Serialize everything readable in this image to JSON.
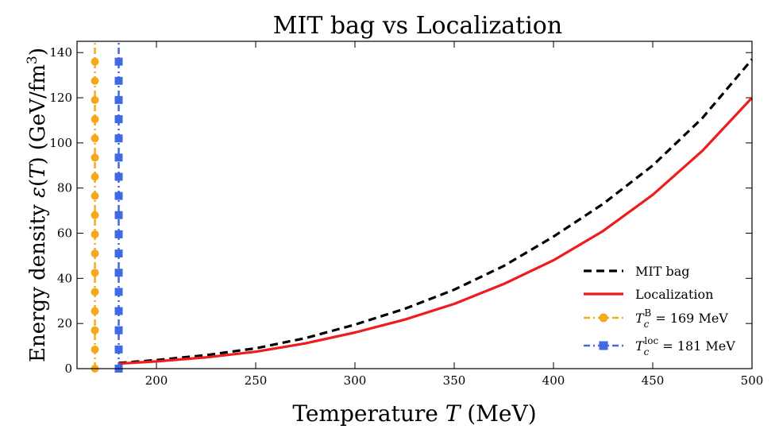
{
  "chart_data": {
    "type": "line",
    "title": "MIT bag vs Localization",
    "xlabel": {
      "prefix": "Temperature ",
      "var": "T",
      "suffix": " (MeV)"
    },
    "ylabel": {
      "prefix": "Energy density ",
      "eps": "ε",
      "open": "(",
      "var": "T",
      "close": ")",
      "units": " (GeV/fm",
      "exp": "3",
      "units_close": ")"
    },
    "xlim": [
      160,
      500
    ],
    "ylim": [
      0,
      145
    ],
    "xticks": [
      200,
      250,
      300,
      350,
      400,
      450,
      500
    ],
    "yticks": [
      0,
      20,
      40,
      60,
      80,
      100,
      120,
      140
    ],
    "series": [
      {
        "name": "MIT bag",
        "style": "dashed",
        "color": "#000000",
        "x": [
          181,
          200,
          225,
          250,
          275,
          300,
          325,
          350,
          375,
          400,
          425,
          450,
          475,
          500
        ],
        "y": [
          2.5,
          3.8,
          6.0,
          9.0,
          13.5,
          19.5,
          26.5,
          35.0,
          45.5,
          58.5,
          73.0,
          90.0,
          111.0,
          137.0
        ]
      },
      {
        "name": "Localization",
        "style": "solid",
        "color": "#ee1c1c",
        "x": [
          181,
          200,
          225,
          250,
          275,
          300,
          325,
          350,
          375,
          400,
          425,
          450,
          475,
          500
        ],
        "y": [
          2.2,
          3.2,
          5.0,
          7.5,
          11.2,
          16.0,
          21.7,
          28.7,
          37.5,
          48.0,
          61.0,
          77.0,
          96.5,
          120.0
        ]
      },
      {
        "name": "Tc B",
        "style": "dashdot-circle",
        "color": "#f5a81b",
        "x_value": 169,
        "marker_y": [
          0,
          8.5,
          17,
          25.5,
          34,
          42.5,
          51,
          59.5,
          68,
          76.5,
          85,
          93.5,
          102,
          110.5,
          119,
          127.5,
          136
        ],
        "label": {
          "T": "T",
          "sub": "c",
          "sup": "B",
          "rest": " = 169 MeV"
        }
      },
      {
        "name": "Tc loc",
        "style": "dashdot-square",
        "color": "#4169e1",
        "x_value": 181,
        "marker_y": [
          0,
          8.5,
          17,
          25.5,
          34,
          42.5,
          51,
          59.5,
          68,
          76.5,
          85,
          93.5,
          102,
          110.5,
          119,
          127.5,
          136
        ],
        "label": {
          "T": "T",
          "sub": "c",
          "sup": "loc",
          "rest": " = 181 MeV"
        }
      }
    ],
    "legend": {
      "position": "bottom-right",
      "entries": [
        "MIT bag",
        "Localization"
      ]
    }
  }
}
